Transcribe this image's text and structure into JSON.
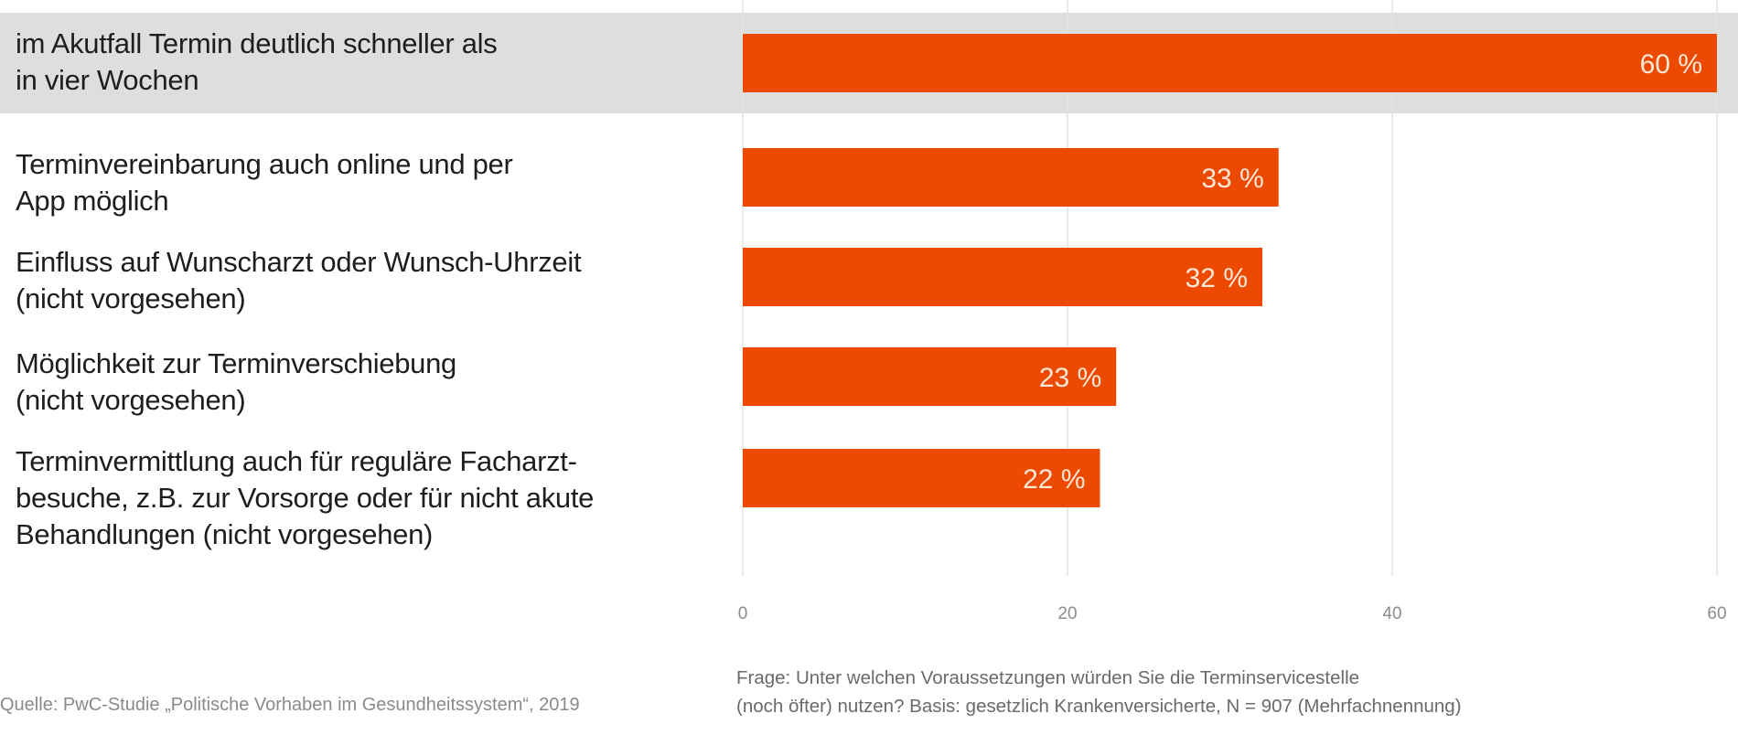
{
  "chart_data": {
    "type": "bar",
    "orientation": "horizontal",
    "categories": [
      "im Akutfall Termin deutlich schneller als\nin vier Wochen",
      "Terminvereinbarung auch online und per\nApp möglich",
      "Einfluss auf Wunscharzt oder Wunsch-Uhrzeit\n(nicht vorgesehen)",
      "Möglichkeit zur Terminverschiebung\n(nicht vorgesehen)",
      "Terminvermittlung auch für reguläre Facharzt-\nbesuche, z.B. zur Vorsorge oder für nicht akute\nBehandlungen (nicht vorgesehen)"
    ],
    "values": [
      60,
      33,
      32,
      23,
      22
    ],
    "value_labels": [
      "60 %",
      "33 %",
      "32 %",
      "23 %",
      "22 %"
    ],
    "highlighted_index": 0,
    "xlim": [
      0,
      60
    ],
    "xticks": [
      0,
      20,
      40,
      60
    ],
    "xtick_labels": [
      "0",
      "20",
      "40",
      "60"
    ],
    "grid": true,
    "title": "",
    "xlabel": "",
    "ylabel": "",
    "colors": {
      "bar": "#ec4a00",
      "highlight_band": "#dedede",
      "grid": "#e3e3e3",
      "value_label": "#fde7d6",
      "tick_label": "#8c8c8c"
    }
  },
  "footer": {
    "source": "Quelle: PwC-Studie „Politische Vorhaben im Gesundheitssystem“, 2019",
    "question": "Frage: Unter welchen Voraussetzungen würden Sie die Terminservicestelle\n(noch öfter) nutzen? Basis: gesetzlich Krankenversicherte, N = 907 (Mehrfachnennung)"
  }
}
